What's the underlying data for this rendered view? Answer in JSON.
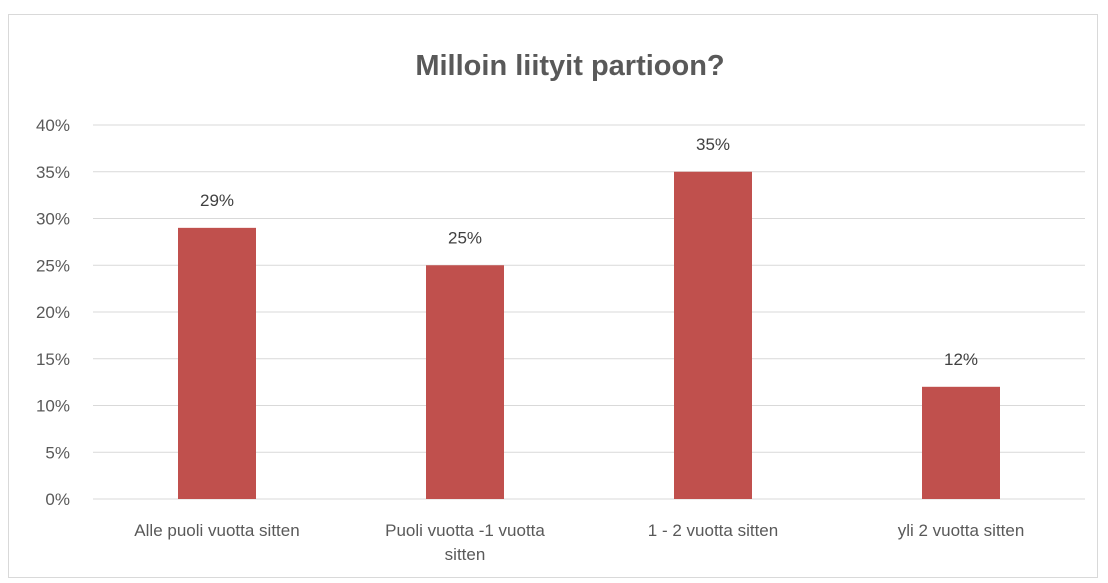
{
  "chart_data": {
    "type": "bar",
    "title": "Milloin liityit partioon?",
    "xlabel": "",
    "ylabel": "",
    "categories": [
      [
        "Alle puoli vuotta sitten"
      ],
      [
        "Puoli vuotta -1 vuotta",
        "sitten"
      ],
      [
        "1 - 2 vuotta sitten"
      ],
      [
        "yli 2 vuotta sitten"
      ]
    ],
    "values": [
      29,
      25,
      35,
      12
    ],
    "data_labels": [
      "29%",
      "25%",
      "35%",
      "12%"
    ],
    "ylim": [
      0,
      40
    ],
    "yticks": [
      0,
      5,
      10,
      15,
      20,
      25,
      30,
      35,
      40
    ],
    "ytick_labels": [
      "0%",
      "5%",
      "10%",
      "15%",
      "20%",
      "25%",
      "30%",
      "35%",
      "40%"
    ],
    "grid": true,
    "legend": "none",
    "bar_color": "#c0504d",
    "grid_color": "#d9d9d9"
  }
}
